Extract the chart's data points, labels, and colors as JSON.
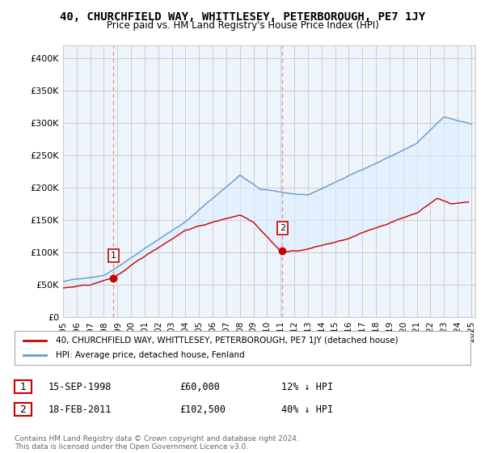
{
  "title": "40, CHURCHFIELD WAY, WHITTLESEY, PETERBOROUGH, PE7 1JY",
  "subtitle": "Price paid vs. HM Land Registry's House Price Index (HPI)",
  "ylabel_ticks": [
    "£0",
    "£50K",
    "£100K",
    "£150K",
    "£200K",
    "£250K",
    "£300K",
    "£350K",
    "£400K"
  ],
  "ytick_values": [
    0,
    50000,
    100000,
    150000,
    200000,
    250000,
    300000,
    350000,
    400000
  ],
  "ylim": [
    0,
    420000
  ],
  "xlim_start": 1995.0,
  "xlim_end": 2025.3,
  "sale1_x": 1998.71,
  "sale1_y": 60000,
  "sale1_label": "1",
  "sale2_x": 2011.12,
  "sale2_y": 102500,
  "sale2_label": "2",
  "red_color": "#cc0000",
  "blue_color": "#6699cc",
  "fill_color": "#ddeeff",
  "vline_color": "#ee8888",
  "background_color": "#ffffff",
  "chart_bg_color": "#eef4fb",
  "grid_color": "#cccccc",
  "legend_entry1": "40, CHURCHFIELD WAY, WHITTLESEY, PETERBOROUGH, PE7 1JY (detached house)",
  "legend_entry2": "HPI: Average price, detached house, Fenland",
  "table_row1": [
    "1",
    "15-SEP-1998",
    "£60,000",
    "12% ↓ HPI"
  ],
  "table_row2": [
    "2",
    "18-FEB-2011",
    "£102,500",
    "40% ↓ HPI"
  ],
  "footer": "Contains HM Land Registry data © Crown copyright and database right 2024.\nThis data is licensed under the Open Government Licence v3.0."
}
